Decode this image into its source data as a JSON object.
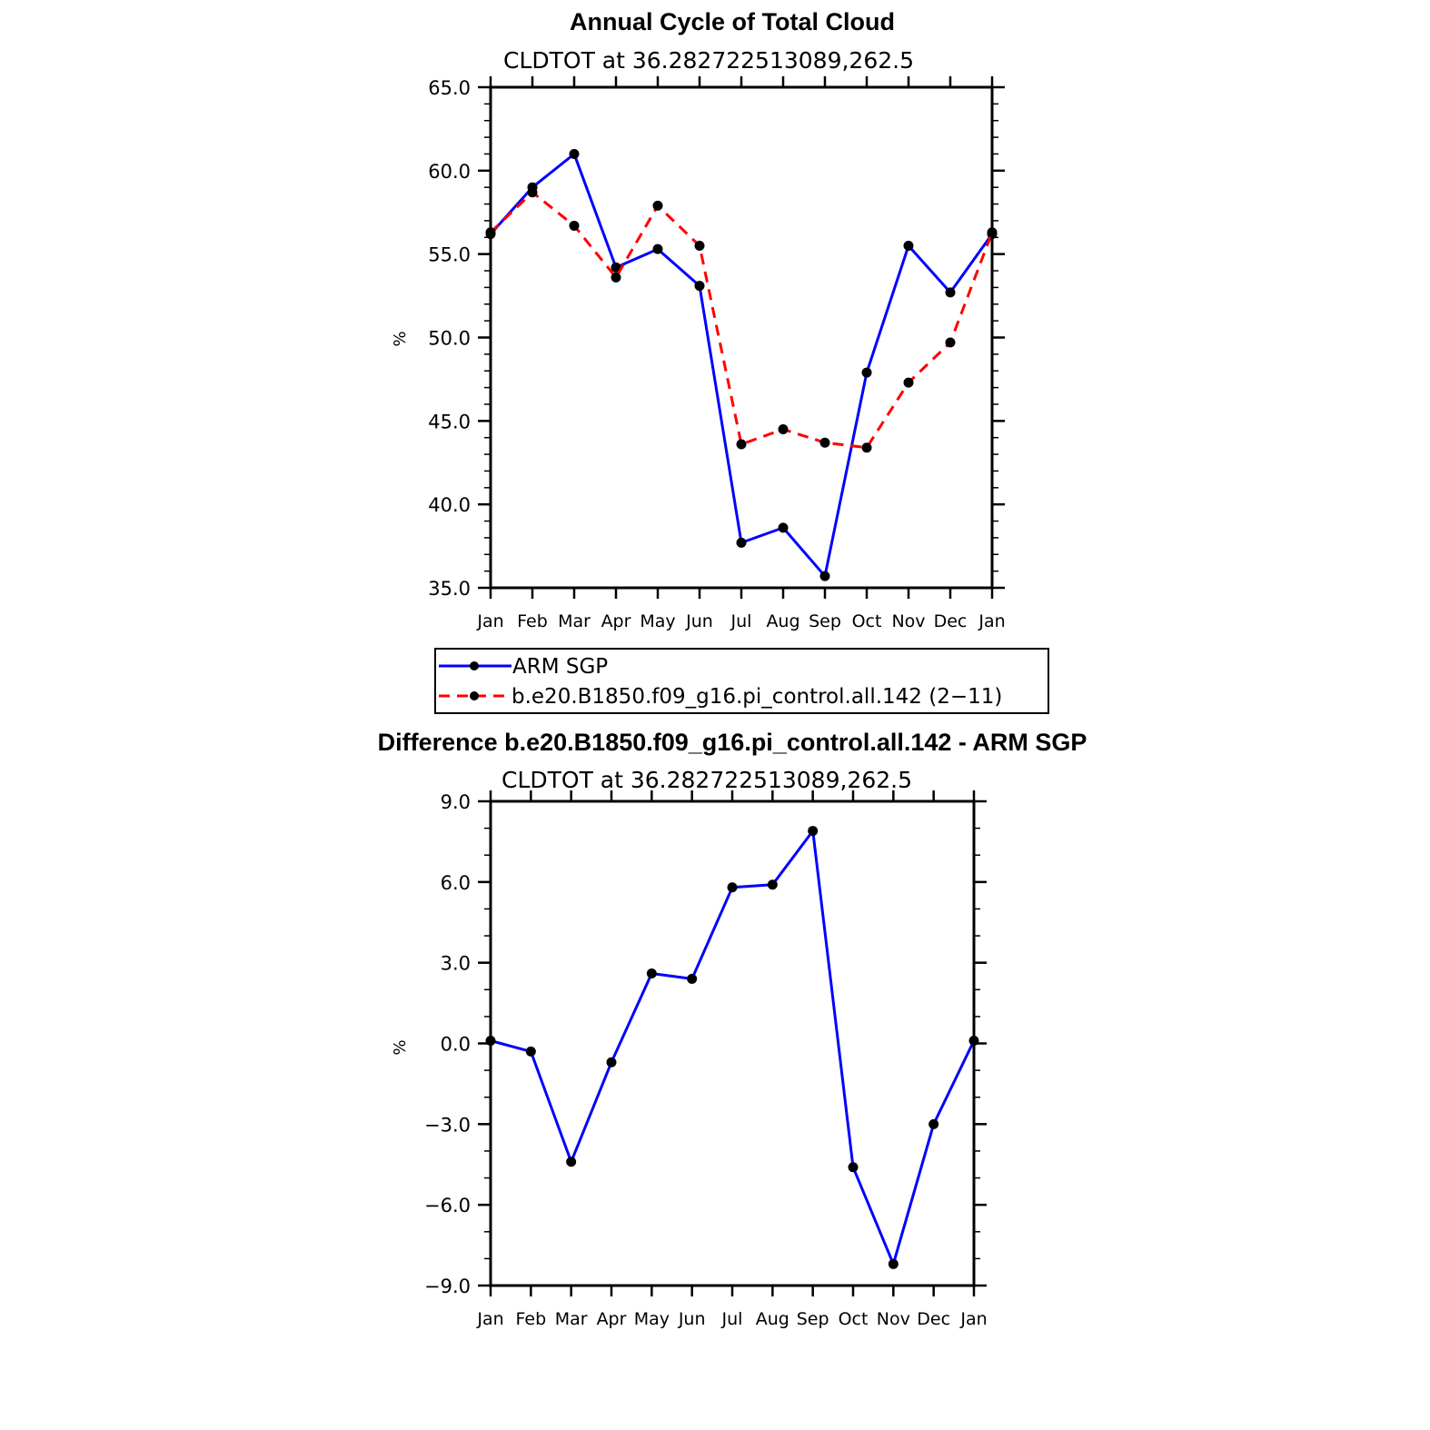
{
  "chart_data": [
    {
      "type": "line",
      "title": "Annual Cycle of Total Cloud",
      "subtitle": "CLDTOT at 36.282722513089,262.5",
      "ylabel": "%",
      "xlabel": "",
      "ylim": [
        35.0,
        65.0
      ],
      "yticks": [
        35.0,
        40.0,
        45.0,
        50.0,
        55.0,
        60.0,
        65.0
      ],
      "ytick_labels": [
        "35.0",
        "40.0",
        "45.0",
        "50.0",
        "55.0",
        "60.0",
        "65.0"
      ],
      "categories": [
        "Jan",
        "Feb",
        "Mar",
        "Apr",
        "May",
        "Jun",
        "Jul",
        "Aug",
        "Sep",
        "Oct",
        "Nov",
        "Dec",
        "Jan"
      ],
      "series": [
        {
          "name": "ARM SGP",
          "color": "#0000ff",
          "dash": "solid",
          "values": [
            56.2,
            59.0,
            61.0,
            54.2,
            55.3,
            53.1,
            37.7,
            38.6,
            35.7,
            47.9,
            55.5,
            52.7,
            56.2
          ]
        },
        {
          "name": "b.e20.B1850.f09_g16.pi_control.all.142 (2−11)",
          "color": "#ff0000",
          "dash": "dashed",
          "values": [
            56.3,
            58.7,
            56.7,
            53.6,
            57.9,
            55.5,
            43.6,
            44.5,
            43.7,
            43.4,
            47.3,
            49.7,
            56.3
          ]
        }
      ],
      "legend": {
        "position": "below",
        "entries": [
          "ARM SGP",
          "b.e20.B1850.f09_g16.pi_control.all.142 (2−11)"
        ]
      }
    },
    {
      "type": "line",
      "title": "Difference b.e20.B1850.f09_g16.pi_control.all.142 - ARM SGP",
      "subtitle": "CLDTOT at 36.282722513089,262.5",
      "ylabel": "%",
      "xlabel": "",
      "ylim": [
        -9.0,
        9.0
      ],
      "yticks": [
        -9.0,
        -6.0,
        -3.0,
        0.0,
        3.0,
        6.0,
        9.0
      ],
      "ytick_labels": [
        "−9.0",
        "−6.0",
        "−3.0",
        "0.0",
        "3.0",
        "6.0",
        "9.0"
      ],
      "categories": [
        "Jan",
        "Feb",
        "Mar",
        "Apr",
        "May",
        "Jun",
        "Jul",
        "Aug",
        "Sep",
        "Oct",
        "Nov",
        "Dec",
        "Jan"
      ],
      "series": [
        {
          "name": "Difference",
          "color": "#0000ff",
          "dash": "solid",
          "values": [
            0.1,
            -0.3,
            -4.4,
            -0.7,
            2.6,
            2.4,
            5.8,
            5.9,
            7.9,
            -4.6,
            -8.2,
            -3.0,
            0.1
          ]
        }
      ]
    }
  ]
}
